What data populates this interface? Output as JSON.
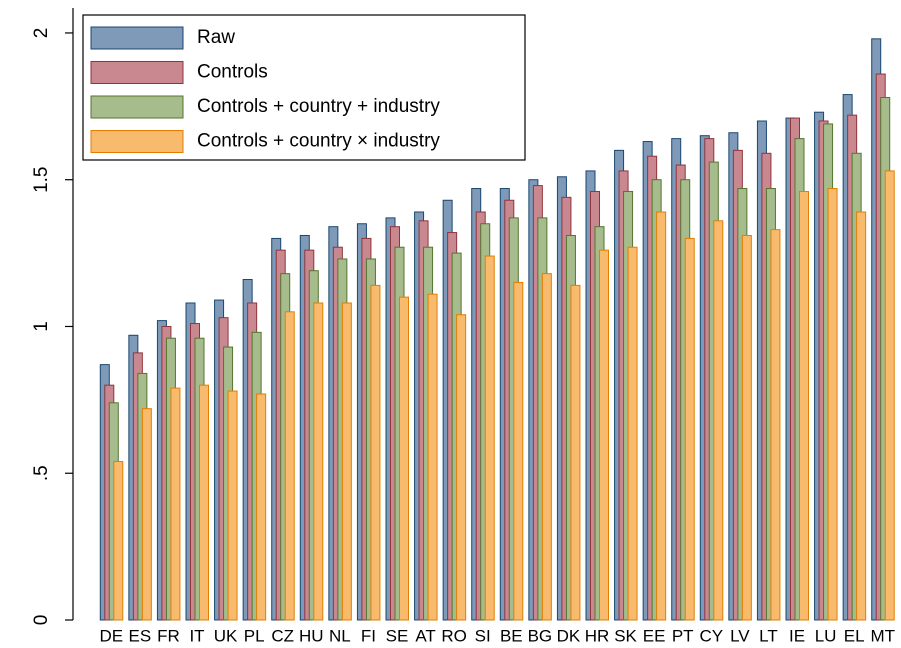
{
  "chart_data": {
    "type": "bar",
    "categories": [
      "DE",
      "ES",
      "FR",
      "IT",
      "UK",
      "PL",
      "CZ",
      "HU",
      "NL",
      "FI",
      "SE",
      "AT",
      "RO",
      "SI",
      "BE",
      "BG",
      "DK",
      "HR",
      "SK",
      "EE",
      "PT",
      "CY",
      "LV",
      "LT",
      "IE",
      "LU",
      "EL",
      "MT"
    ],
    "series": [
      {
        "name": "Raw",
        "color": "#7f9ab8",
        "values": [
          0.87,
          0.97,
          1.02,
          1.08,
          1.09,
          1.16,
          1.3,
          1.31,
          1.34,
          1.35,
          1.37,
          1.39,
          1.43,
          1.47,
          1.47,
          1.5,
          1.51,
          1.53,
          1.6,
          1.63,
          1.64,
          1.65,
          1.66,
          1.7,
          1.71,
          1.73,
          1.79,
          1.98
        ]
      },
      {
        "name": "Controls",
        "color": "#c98790",
        "values": [
          0.8,
          0.91,
          1.0,
          1.01,
          1.03,
          1.08,
          1.26,
          1.26,
          1.27,
          1.3,
          1.34,
          1.36,
          1.32,
          1.39,
          1.43,
          1.48,
          1.44,
          1.46,
          1.53,
          1.58,
          1.55,
          1.64,
          1.6,
          1.59,
          1.71,
          1.7,
          1.72,
          1.86
        ]
      },
      {
        "name": "Controls + country + industry",
        "color": "#a6bc8c",
        "values": [
          0.74,
          0.84,
          0.96,
          0.96,
          0.93,
          0.98,
          1.18,
          1.19,
          1.23,
          1.23,
          1.27,
          1.27,
          1.25,
          1.35,
          1.37,
          1.37,
          1.31,
          1.34,
          1.46,
          1.5,
          1.5,
          1.56,
          1.47,
          1.47,
          1.64,
          1.69,
          1.59,
          1.78
        ]
      },
      {
        "name": "Controls + country × industry",
        "color": "#f8ba6c",
        "values": [
          0.54,
          0.72,
          0.79,
          0.8,
          0.78,
          0.77,
          1.05,
          1.08,
          1.08,
          1.14,
          1.1,
          1.11,
          1.04,
          1.24,
          1.15,
          1.18,
          1.14,
          1.26,
          1.27,
          1.39,
          1.3,
          1.36,
          1.31,
          1.33,
          1.46,
          1.47,
          1.39,
          1.53
        ]
      }
    ],
    "strokes": [
      "#1a476f",
      "#90353b",
      "#55752f",
      "#e37e00"
    ],
    "ylim": [
      0,
      2.085
    ],
    "yticks": [
      0,
      {
        "value": 0.5,
        "label": ".5"
      },
      1,
      1.5,
      2
    ],
    "grid": false,
    "legend": "top-left"
  }
}
